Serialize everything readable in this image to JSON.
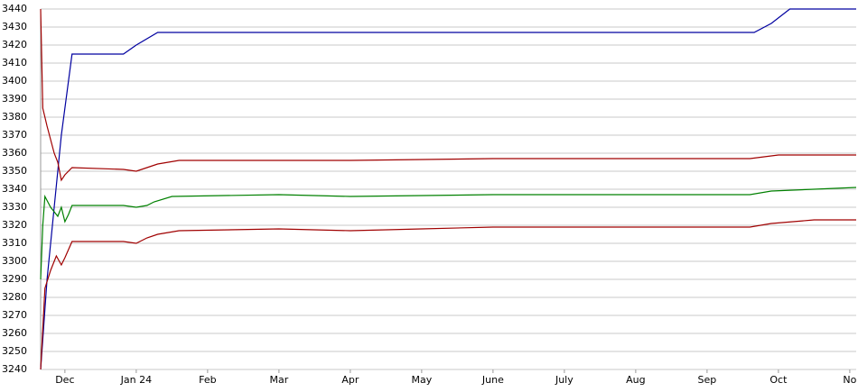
{
  "chart_data": {
    "type": "line",
    "xlim": [
      -0.34,
      11.09
    ],
    "xticks": [
      {
        "value": 0,
        "label": "Dec"
      },
      {
        "value": 1,
        "label": "Jan 24"
      },
      {
        "value": 2,
        "label": "Feb"
      },
      {
        "value": 3,
        "label": "Mar"
      },
      {
        "value": 4,
        "label": "Apr"
      },
      {
        "value": 5,
        "label": "May"
      },
      {
        "value": 6,
        "label": "June"
      },
      {
        "value": 7,
        "label": "July"
      },
      {
        "value": 8,
        "label": "Aug"
      },
      {
        "value": 9,
        "label": "Sep"
      },
      {
        "value": 10,
        "label": "Oct"
      },
      {
        "value": 11,
        "label": "No"
      }
    ],
    "ylim": [
      3240,
      3440
    ],
    "yticks": [
      3240,
      3250,
      3260,
      3270,
      3280,
      3290,
      3300,
      3310,
      3320,
      3330,
      3340,
      3350,
      3360,
      3370,
      3380,
      3390,
      3400,
      3410,
      3420,
      3430,
      3440
    ],
    "grid": true,
    "series": [
      {
        "color": "#0000a0",
        "x": [
          -0.34,
          -0.25,
          -0.15,
          -0.05,
          0.1,
          0.82,
          1.0,
          1.3,
          9.66,
          9.9,
          10.16,
          11.09
        ],
        "values": [
          3240,
          3290,
          3330,
          3370,
          3415,
          3415,
          3420,
          3427,
          3427,
          3432,
          3440,
          3440
        ]
      },
      {
        "color": "#a00000",
        "x": [
          -0.34,
          -0.31,
          -0.25,
          -0.15,
          -0.1,
          -0.05,
          0.0,
          0.1,
          0.82,
          1.0,
          1.15,
          1.3,
          1.6,
          3.0,
          4.0,
          6.0,
          9.6,
          10.0,
          10.5,
          11.09
        ],
        "values": [
          3440,
          3385,
          3375,
          3360,
          3355,
          3345,
          3348,
          3352,
          3351,
          3350,
          3352,
          3354,
          3356,
          3356,
          3356,
          3357,
          3357,
          3359,
          3359,
          3359
        ]
      },
      {
        "color": "#008000",
        "x": [
          -0.34,
          -0.31,
          -0.28,
          -0.2,
          -0.1,
          -0.05,
          0.0,
          0.05,
          0.1,
          0.82,
          1.0,
          1.15,
          1.25,
          1.5,
          3.0,
          4.0,
          6.0,
          9.6,
          9.9,
          10.5,
          11.09
        ],
        "values": [
          3290,
          3320,
          3336,
          3330,
          3325,
          3330,
          3322,
          3326,
          3331,
          3331,
          3330,
          3331,
          3333,
          3336,
          3337,
          3336,
          3337,
          3337,
          3339,
          3340,
          3341
        ]
      },
      {
        "color": "#a00000",
        "x": [
          -0.34,
          -0.28,
          -0.2,
          -0.12,
          -0.05,
          0.0,
          0.1,
          0.82,
          1.0,
          1.15,
          1.3,
          1.6,
          3.0,
          4.0,
          5.0,
          6.0,
          9.6,
          9.9,
          10.5,
          11.09
        ],
        "values": [
          3240,
          3285,
          3295,
          3303,
          3298,
          3302,
          3311,
          3311,
          3310,
          3313,
          3315,
          3317,
          3318,
          3317,
          3318,
          3319,
          3319,
          3321,
          3323,
          3323
        ]
      }
    ]
  }
}
